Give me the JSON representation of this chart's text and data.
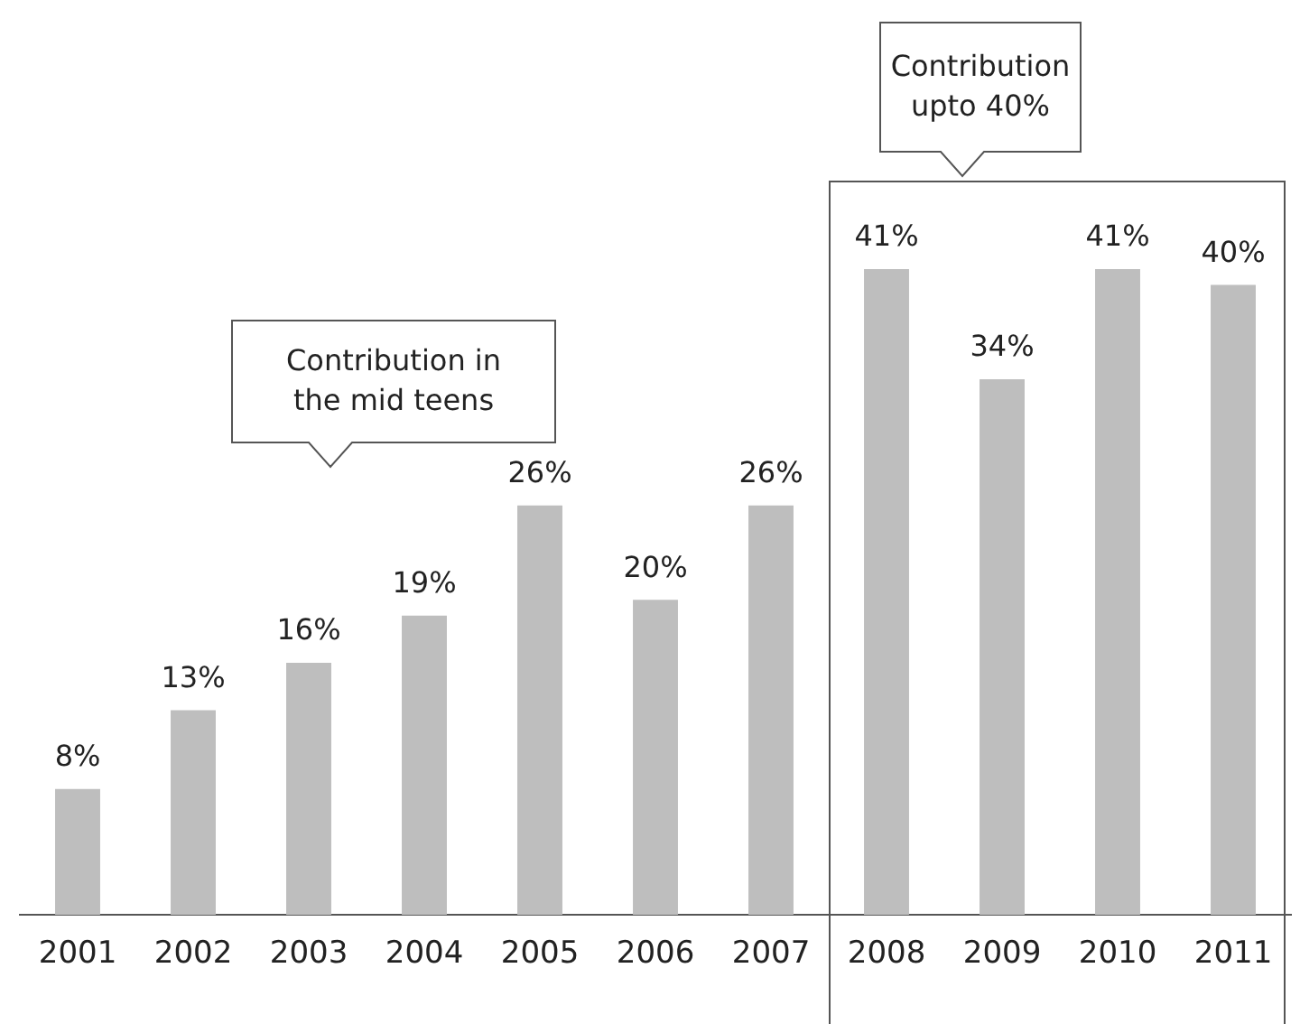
{
  "chart_data": {
    "type": "bar",
    "categories": [
      "2001",
      "2002",
      "2003",
      "2004",
      "2005",
      "2006",
      "2007",
      "2008",
      "2009",
      "2010",
      "2011"
    ],
    "values": [
      8,
      13,
      16,
      19,
      26,
      20,
      26,
      41,
      34,
      41,
      40
    ],
    "value_labels": [
      "8%",
      "13%",
      "16%",
      "19%",
      "26%",
      "20%",
      "26%",
      "41%",
      "34%",
      "41%",
      "40%"
    ],
    "color": "#bebebe",
    "annotations": [
      "Contribution in\nthe mid teens",
      "Contribution\nupto 40%"
    ],
    "grid": false,
    "legend": false
  }
}
